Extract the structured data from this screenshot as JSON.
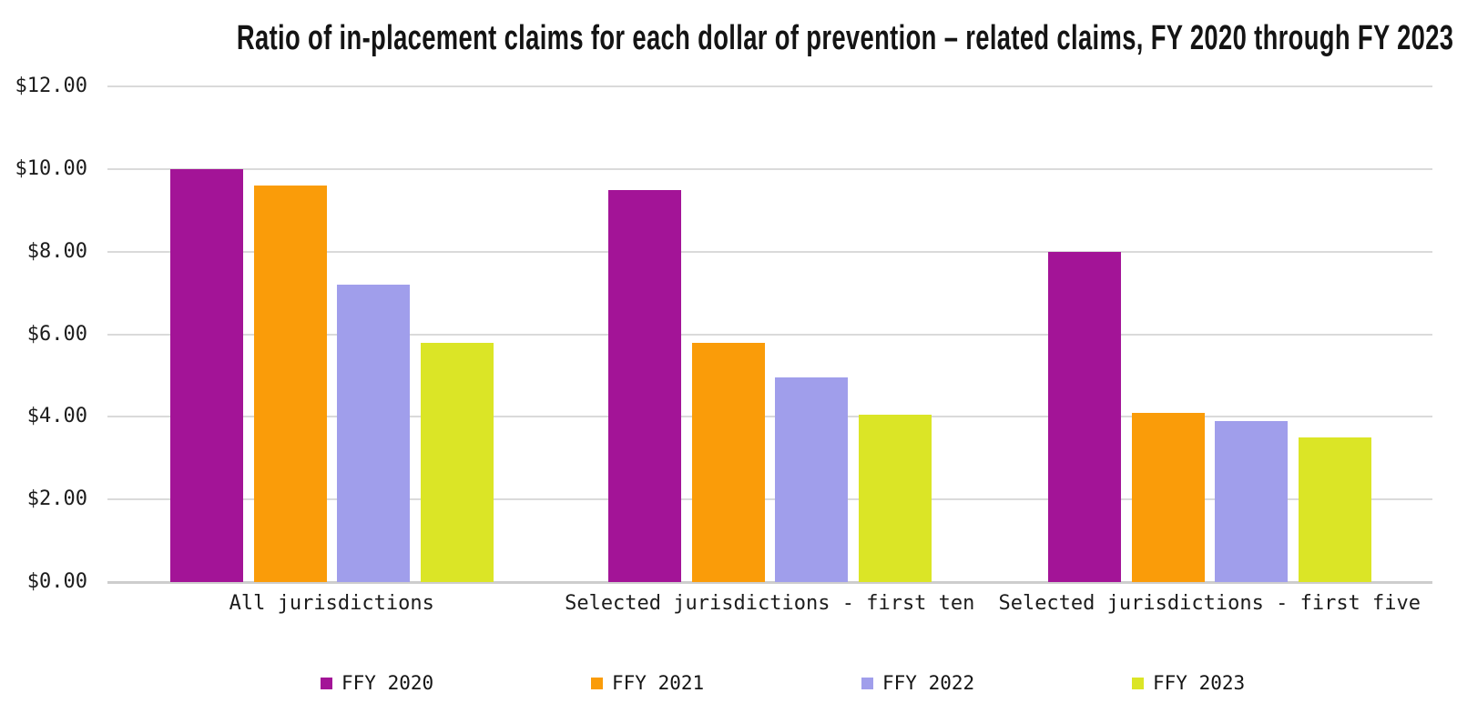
{
  "chart_data": {
    "type": "bar",
    "title": "Ratio of in-placement claims for each dollar of prevention – related claims, FY 2020 through FY 2023",
    "categories": [
      "All jurisdictions",
      "Selected jurisdictions - first ten",
      "Selected jurisdictions - first five"
    ],
    "series": [
      {
        "name": "FFY 2020",
        "color": "#A31497",
        "values": [
          10.0,
          9.5,
          8.0
        ]
      },
      {
        "name": "FFY 2021",
        "color": "#FA9C09",
        "values": [
          9.6,
          5.8,
          4.1
        ]
      },
      {
        "name": "FFY 2022",
        "color": "#A09EEB",
        "values": [
          7.2,
          4.95,
          3.9
        ]
      },
      {
        "name": "FFY 2023",
        "color": "#DBE526",
        "values": [
          5.8,
          4.05,
          3.5
        ]
      }
    ],
    "xlabel": "",
    "ylabel": "",
    "ylim": [
      0,
      12
    ],
    "ytick_step": 2,
    "yticks": [
      "$12.00",
      "$10.00",
      "$8.00",
      "$6.00",
      "$4.00",
      "$2.00",
      "$0.00"
    ],
    "grid": true,
    "legend_position": "bottom",
    "gridline_color": "#dadada",
    "axis_line_color": "#cdcdcd",
    "text_color": "#1c1c1c"
  }
}
